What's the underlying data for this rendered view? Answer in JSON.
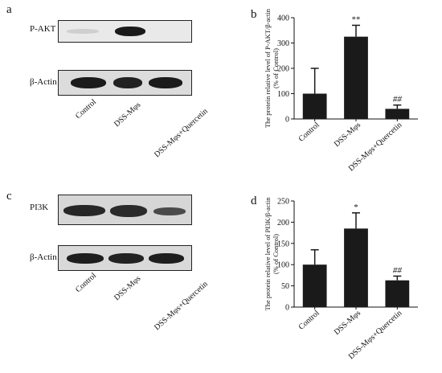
{
  "panels": {
    "a": "a",
    "b": "b",
    "c": "c",
    "d": "d"
  },
  "blots": {
    "top": {
      "row1_label": "P-AKT",
      "row2_label": "β-Actin",
      "lanes": [
        "Control",
        "DSS-Mφs",
        "DSS-Mφs+Quercetin"
      ]
    },
    "bottom": {
      "row1_label": "PI3K",
      "row2_label": "β-Actin",
      "lanes": [
        "Control",
        "DSS-Mφs",
        "DSS-Mφs+Quercetin"
      ]
    }
  },
  "chart_data": [
    {
      "type": "bar",
      "panel": "b",
      "categories": [
        "Control",
        "DSS-Mφs",
        "DSS-Mφs+Quercetin"
      ],
      "values": [
        100,
        325,
        40
      ],
      "errors": [
        100,
        45,
        15
      ],
      "annotations": [
        "",
        "**",
        "##"
      ],
      "ylabel": "The protein relative level of P-AKT/β-actin (% of Control)",
      "ylim": [
        0,
        400
      ],
      "yticks": [
        0,
        100,
        200,
        300,
        400
      ],
      "grid": false
    },
    {
      "type": "bar",
      "panel": "d",
      "categories": [
        "Control",
        "DSS-Mφs",
        "DSS-Mφs+Quercetin"
      ],
      "values": [
        100,
        185,
        63
      ],
      "errors": [
        35,
        37,
        10
      ],
      "annotations": [
        "",
        "*",
        "##"
      ],
      "ylabel": "The protein relative level of PI3K/β-actin (% of Control)",
      "ylim": [
        0,
        250
      ],
      "yticks": [
        0,
        50,
        100,
        150,
        200,
        250
      ],
      "grid": false
    }
  ]
}
